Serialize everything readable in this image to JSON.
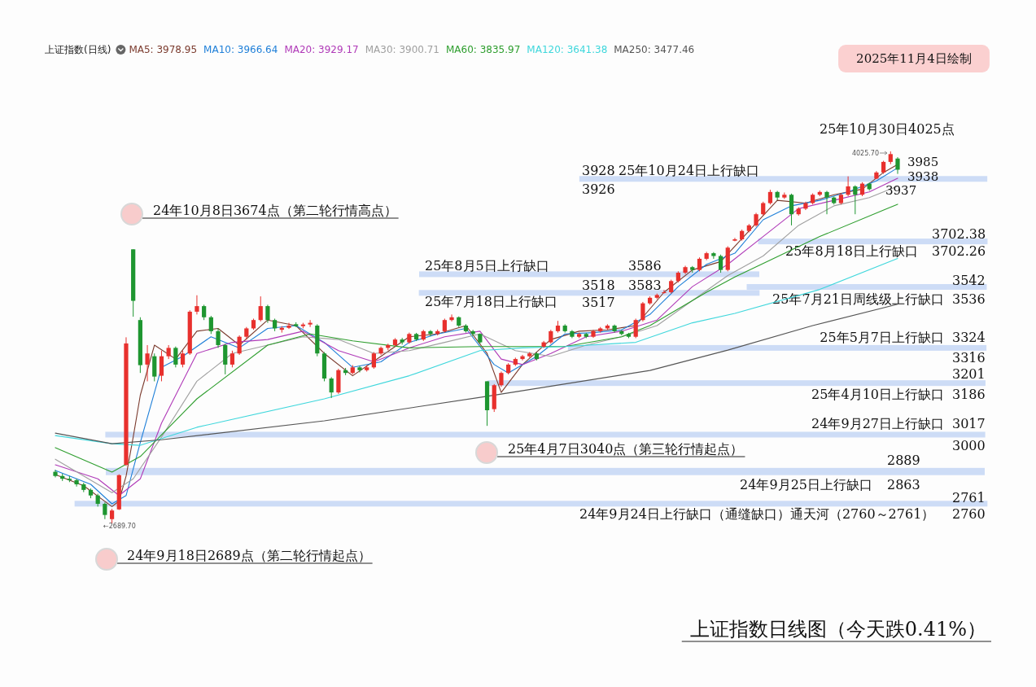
{
  "chart_data": {
    "type": "candlestick",
    "title": "上证指数日线图（今天跌0.41%）",
    "subtitle": "上证指数(日线)",
    "legend": "top",
    "categories": [
      null,
      null,
      null,
      null,
      null,
      null,
      null,
      null,
      null,
      null,
      null,
      null,
      null,
      null,
      null,
      null,
      null,
      null,
      null,
      null,
      null,
      null,
      null,
      null,
      null,
      null,
      null,
      null,
      null,
      null,
      null,
      null,
      null,
      null,
      null,
      null,
      null,
      null,
      null,
      null,
      null,
      null,
      null,
      null,
      null,
      null,
      null,
      null,
      null,
      null,
      null,
      null,
      null,
      null,
      null,
      null,
      null,
      null,
      null,
      null,
      null,
      null,
      null,
      null,
      null,
      null,
      null,
      null,
      null,
      null,
      null,
      null,
      null,
      null,
      null,
      null,
      null,
      null,
      null,
      null,
      null,
      null,
      null,
      null,
      null,
      null,
      null,
      null,
      null,
      null,
      null,
      null,
      null,
      null,
      null,
      null,
      null,
      null,
      null,
      null,
      null,
      null,
      null,
      null,
      null,
      null,
      null,
      null,
      null,
      null,
      null,
      null,
      null,
      null,
      null,
      null,
      null,
      null,
      null,
      null
    ],
    "ohlc": [
      [
        2875,
        2882,
        2855,
        2860
      ],
      [
        2860,
        2868,
        2842,
        2850
      ],
      [
        2850,
        2860,
        2838,
        2845
      ],
      [
        2845,
        2850,
        2822,
        2830
      ],
      [
        2830,
        2836,
        2802,
        2810
      ],
      [
        2810,
        2815,
        2780,
        2790
      ],
      [
        2790,
        2796,
        2750,
        2760
      ],
      [
        2760,
        2765,
        2705,
        2720
      ],
      [
        2705,
        2742,
        2689.7,
        2736
      ],
      [
        2740,
        2866,
        2738,
        2863
      ],
      [
        2900,
        3358,
        2896,
        3336
      ],
      [
        3674,
        3674,
        3432,
        3489
      ],
      [
        3420,
        3430,
        3230,
        3258
      ],
      [
        3260,
        3330,
        3200,
        3300
      ],
      [
        3290,
        3300,
        3200,
        3217
      ],
      [
        3220,
        3310,
        3200,
        3290
      ],
      [
        3290,
        3330,
        3280,
        3320
      ],
      [
        3320,
        3325,
        3250,
        3260
      ],
      [
        3260,
        3310,
        3250,
        3300
      ],
      [
        3300,
        3455,
        3295,
        3450
      ],
      [
        3450,
        3509,
        3440,
        3470
      ],
      [
        3470,
        3475,
        3420,
        3430
      ],
      [
        3430,
        3435,
        3370,
        3380
      ],
      [
        3380,
        3390,
        3320,
        3330
      ],
      [
        3330,
        3335,
        3225,
        3260
      ],
      [
        3260,
        3310,
        3250,
        3300
      ],
      [
        3300,
        3365,
        3295,
        3360
      ],
      [
        3360,
        3395,
        3350,
        3390
      ],
      [
        3390,
        3425,
        3385,
        3420
      ],
      [
        3420,
        3505,
        3415,
        3470
      ],
      [
        3470,
        3475,
        3410,
        3420
      ],
      [
        3420,
        3425,
        3380,
        3390
      ],
      [
        3385,
        3398,
        3375,
        3392
      ],
      [
        3392,
        3410,
        3388,
        3400
      ],
      [
        3405,
        3412,
        3395,
        3398
      ],
      [
        3398,
        3410,
        3390,
        3404
      ],
      [
        3404,
        3420,
        3395,
        3410
      ],
      [
        3400,
        3405,
        3290,
        3300
      ],
      [
        3300,
        3305,
        3200,
        3210
      ],
      [
        3210,
        3215,
        3140,
        3160
      ],
      [
        3160,
        3245,
        3155,
        3240
      ],
      [
        3240,
        3248,
        3222,
        3230
      ],
      [
        3230,
        3258,
        3225,
        3250
      ],
      [
        3250,
        3255,
        3232,
        3240
      ],
      [
        3240,
        3258,
        3235,
        3250
      ],
      [
        3250,
        3305,
        3245,
        3300
      ],
      [
        3300,
        3325,
        3295,
        3320
      ],
      [
        3320,
        3335,
        3312,
        3330
      ],
      [
        3330,
        3355,
        3325,
        3350
      ],
      [
        3350,
        3356,
        3332,
        3340
      ],
      [
        3340,
        3375,
        3335,
        3370
      ],
      [
        3370,
        3374,
        3345,
        3350
      ],
      [
        3350,
        3385,
        3345,
        3380
      ],
      [
        3380,
        3384,
        3362,
        3370
      ],
      [
        3370,
        3386,
        3365,
        3380
      ],
      [
        3380,
        3425,
        3375,
        3420
      ],
      [
        3420,
        3440,
        3415,
        3430
      ],
      [
        3430,
        3433,
        3395,
        3400
      ],
      [
        3400,
        3405,
        3375,
        3380
      ],
      [
        3380,
        3385,
        3362,
        3370
      ],
      [
        3370,
        3372,
        3335,
        3340
      ],
      [
        3200,
        3200,
        3040,
        3096
      ],
      [
        3100,
        3190,
        3090,
        3186
      ],
      [
        3186,
        3235,
        3180,
        3230
      ],
      [
        3230,
        3265,
        3225,
        3260
      ],
      [
        3260,
        3285,
        3255,
        3280
      ],
      [
        3280,
        3295,
        3275,
        3290
      ],
      [
        3290,
        3305,
        3285,
        3300
      ],
      [
        3300,
        3304,
        3275,
        3280
      ],
      [
        3324,
        3345,
        3320,
        3340
      ],
      [
        3340,
        3385,
        3335,
        3380
      ],
      [
        3380,
        3417,
        3375,
        3400
      ],
      [
        3400,
        3405,
        3375,
        3380
      ],
      [
        3380,
        3384,
        3355,
        3360
      ],
      [
        3360,
        3375,
        3355,
        3370
      ],
      [
        3370,
        3374,
        3355,
        3360
      ],
      [
        3360,
        3385,
        3356,
        3380
      ],
      [
        3380,
        3395,
        3375,
        3390
      ],
      [
        3390,
        3405,
        3385,
        3400
      ],
      [
        3400,
        3404,
        3375,
        3380
      ],
      [
        3380,
        3384,
        3365,
        3370
      ],
      [
        3370,
        3374,
        3355,
        3360
      ],
      [
        3360,
        3425,
        3355,
        3420
      ],
      [
        3420,
        3485,
        3415,
        3480
      ],
      [
        3480,
        3505,
        3475,
        3500
      ],
      [
        3500,
        3515,
        3495,
        3510
      ],
      [
        3518,
        3528,
        3515,
        3520
      ],
      [
        3520,
        3565,
        3515,
        3560
      ],
      [
        3560,
        3595,
        3555,
        3590
      ],
      [
        3590,
        3615,
        3585,
        3610
      ],
      [
        3610,
        3614,
        3590,
        3600
      ],
      [
        3600,
        3645,
        3595,
        3640
      ],
      [
        3640,
        3665,
        3635,
        3660
      ],
      [
        3660,
        3664,
        3640,
        3650
      ],
      [
        3650,
        3655,
        3590,
        3600
      ],
      [
        3600,
        3685,
        3595,
        3680
      ],
      [
        3705,
        3715,
        3703,
        3710
      ],
      [
        3710,
        3745,
        3705,
        3740
      ],
      [
        3740,
        3765,
        3735,
        3760
      ],
      [
        3760,
        3805,
        3755,
        3800
      ],
      [
        3800,
        3845,
        3795,
        3840
      ],
      [
        3840,
        3888,
        3835,
        3880
      ],
      [
        3880,
        3884,
        3850,
        3860
      ],
      [
        3860,
        3878,
        3855,
        3870
      ],
      [
        3870,
        3874,
        3760,
        3800
      ],
      [
        3800,
        3825,
        3795,
        3820
      ],
      [
        3820,
        3845,
        3815,
        3840
      ],
      [
        3840,
        3875,
        3835,
        3870
      ],
      [
        3870,
        3885,
        3865,
        3880
      ],
      [
        3880,
        3884,
        3800,
        3860
      ],
      [
        3860,
        3864,
        3835,
        3840
      ],
      [
        3840,
        3875,
        3835,
        3870
      ],
      [
        3870,
        3936,
        3865,
        3900
      ],
      [
        3900,
        3904,
        3800,
        3870
      ],
      [
        3870,
        3915,
        3865,
        3910
      ],
      [
        3910,
        3914,
        3885,
        3890
      ],
      [
        3928,
        3955,
        3926,
        3950
      ],
      [
        3950,
        3992,
        3945,
        3988
      ],
      [
        3988,
        4025.7,
        3980,
        4016
      ],
      [
        4000,
        4005,
        3945,
        3960
      ]
    ],
    "series": [
      {
        "name": "MA5: 3978.95",
        "type": "line",
        "color": "#7b3b2e",
        "values": [
          2865,
          null,
          null,
          null,
          2825,
          null,
          null,
          null,
          2750,
          2770,
          2860,
          3000,
          3150,
          null,
          3330,
          null,
          null,
          3280,
          null,
          null,
          3380,
          null,
          null,
          3390,
          null,
          null,
          3330,
          null,
          null,
          null,
          3420,
          null,
          null,
          null,
          3400,
          null,
          null,
          null,
          3300,
          null,
          null,
          null,
          3220,
          null,
          null,
          null,
          3290,
          null,
          null,
          null,
          3360,
          null,
          null,
          null,
          3370,
          null,
          null,
          null,
          3400,
          null,
          null,
          3300,
          null,
          3160,
          null,
          null,
          3260,
          null,
          null,
          null,
          3350,
          null,
          null,
          null,
          3380,
          null,
          null,
          null,
          3385,
          null,
          null,
          null,
          3400,
          null,
          null,
          null,
          3520,
          null,
          null,
          null,
          3600,
          null,
          null,
          null,
          3630,
          null,
          null,
          null,
          3740,
          null,
          null,
          null,
          3850,
          null,
          null,
          null,
          3840,
          null,
          null,
          null,
          3870,
          null,
          null,
          null,
          3890,
          null,
          null,
          3950,
          null,
          3979
        ]
      },
      {
        "name": "MA10: 3966.64",
        "type": "line",
        "color": "#1e7fd8",
        "values": [
          2880,
          null,
          null,
          null,
          null,
          2830,
          null,
          null,
          2760,
          null,
          2790,
          null,
          2980,
          null,
          null,
          3250,
          null,
          null,
          3290,
          null,
          null,
          null,
          3360,
          null,
          null,
          null,
          3320,
          null,
          null,
          null,
          3390,
          null,
          null,
          null,
          3400,
          null,
          null,
          null,
          3340,
          null,
          null,
          null,
          3250,
          null,
          null,
          null,
          3270,
          null,
          null,
          null,
          3340,
          null,
          null,
          null,
          3370,
          null,
          null,
          null,
          3390,
          null,
          null,
          null,
          3260,
          null,
          3230,
          null,
          null,
          null,
          3290,
          null,
          null,
          null,
          3370,
          null,
          null,
          null,
          3375,
          null,
          null,
          null,
          3385,
          null,
          null,
          null,
          3440,
          null,
          null,
          null,
          3540,
          null,
          null,
          null,
          3620,
          null,
          null,
          null,
          3660,
          null,
          null,
          null,
          3780,
          null,
          null,
          null,
          3830,
          null,
          null,
          null,
          3850,
          null,
          null,
          null,
          3880,
          null,
          null,
          null,
          3920,
          null,
          null,
          3967
        ]
      },
      {
        "name": "MA20: 3929.17",
        "type": "line",
        "color": "#b03ab8",
        "values": [
          2900,
          null,
          null,
          null,
          null,
          null,
          2850,
          null,
          null,
          2790,
          null,
          null,
          2850,
          null,
          null,
          3050,
          null,
          null,
          null,
          null,
          3300,
          null,
          null,
          null,
          null,
          3340,
          null,
          null,
          null,
          null,
          3350,
          null,
          null,
          null,
          null,
          3380,
          null,
          null,
          null,
          null,
          3310,
          null,
          null,
          null,
          null,
          3270,
          null,
          null,
          null,
          null,
          3320,
          null,
          null,
          null,
          null,
          3360,
          null,
          null,
          null,
          null,
          3380,
          null,
          null,
          3280,
          null,
          null,
          3260,
          null,
          null,
          null,
          3300,
          null,
          null,
          null,
          null,
          3360,
          null,
          null,
          null,
          null,
          3380,
          null,
          null,
          null,
          null,
          3420,
          null,
          null,
          null,
          null,
          3540,
          null,
          null,
          null,
          null,
          3620,
          null,
          null,
          null,
          null,
          3720,
          null,
          null,
          null,
          null,
          3820,
          null,
          null,
          null,
          null,
          3850,
          null,
          null,
          null,
          null,
          3880,
          null,
          null,
          null,
          3929
        ]
      },
      {
        "name": "MA30: 3900.71",
        "type": "line",
        "color": "#a0a0a0",
        "values": [
          2920,
          null,
          null,
          null,
          null,
          null,
          null,
          null,
          2800,
          null,
          null,
          2850,
          null,
          null,
          null,
          3000,
          null,
          null,
          null,
          null,
          3200,
          null,
          null,
          null,
          null,
          3300,
          null,
          null,
          null,
          null,
          3330,
          null,
          null,
          null,
          null,
          3360,
          null,
          null,
          null,
          null,
          3350,
          null,
          null,
          null,
          null,
          3300,
          null,
          null,
          null,
          null,
          3310,
          null,
          null,
          null,
          null,
          3340,
          null,
          null,
          null,
          null,
          3370,
          null,
          null,
          null,
          null,
          3310,
          null,
          null,
          null,
          null,
          3290,
          null,
          null,
          null,
          null,
          3330,
          null,
          null,
          null,
          null,
          3360,
          null,
          null,
          null,
          null,
          3400,
          null,
          null,
          null,
          null,
          3490,
          null,
          null,
          null,
          null,
          3580,
          null,
          null,
          null,
          null,
          3650,
          null,
          null,
          null,
          null,
          3760,
          null,
          null,
          null,
          null,
          3830,
          null,
          null,
          null,
          null,
          3860,
          null,
          null,
          null,
          3901
        ]
      },
      {
        "name": "MA60: 3835.97",
        "type": "line",
        "color": "#2e9e2e",
        "values": [
          2962,
          null,
          null,
          null,
          null,
          null,
          null,
          null,
          2874,
          null,
          null,
          null,
          2930,
          null,
          null,
          null,
          null,
          null,
          null,
          null,
          3137,
          null,
          null,
          null,
          null,
          null,
          null,
          null,
          null,
          null,
          3330,
          null,
          null,
          null,
          null,
          null,
          3370,
          null,
          null,
          null,
          null,
          null,
          3345,
          null,
          null,
          null,
          null,
          null,
          null,
          null,
          3320,
          null,
          null,
          null,
          null,
          null,
          null,
          null,
          null,
          null,
          3325,
          null,
          null,
          null,
          null,
          null,
          null,
          null,
          null,
          null,
          null,
          null,
          3325,
          null,
          null,
          null,
          null,
          null,
          null,
          null,
          3360,
          null,
          null,
          null,
          3400,
          null,
          null,
          null,
          null,
          null,
          null,
          null,
          3520,
          null,
          null,
          null,
          3575,
          null,
          null,
          null,
          null,
          null,
          null,
          null,
          null,
          null,
          null,
          null,
          3720,
          null,
          null,
          null,
          null,
          null,
          null,
          null,
          null,
          null,
          null,
          3836
        ]
      },
      {
        "name": "MA120: 3641.38",
        "type": "line",
        "color": "#3fd7dc",
        "values": [
          3005,
          null,
          null,
          null,
          null,
          null,
          null,
          null,
          2976,
          null,
          null,
          null,
          2970,
          null,
          null,
          null,
          null,
          null,
          null,
          null,
          3035,
          null,
          null,
          null,
          null,
          null,
          null,
          null,
          null,
          null,
          null,
          null,
          null,
          null,
          null,
          null,
          null,
          null,
          3137,
          null,
          null,
          null,
          null,
          null,
          null,
          null,
          null,
          null,
          null,
          null,
          3220,
          null,
          null,
          null,
          null,
          null,
          null,
          null,
          null,
          null,
          3310,
          null,
          null,
          null,
          null,
          null,
          3320,
          null,
          null,
          null,
          null,
          null,
          3325,
          null,
          null,
          null,
          null,
          null,
          null,
          null,
          null,
          null,
          3340,
          null,
          null,
          null,
          null,
          null,
          null,
          null,
          3410,
          null,
          null,
          null,
          null,
          null,
          3444,
          null,
          null,
          null,
          null,
          null,
          null,
          null,
          null,
          null,
          null,
          null,
          3530,
          null,
          null,
          null,
          null,
          null,
          null,
          null,
          null,
          null,
          null,
          3641
        ]
      },
      {
        "name": "MA250: 3477.46",
        "type": "line",
        "color": "#555555",
        "values": [
          3014,
          null,
          null,
          null,
          null,
          null,
          null,
          null,
          2976,
          null,
          null,
          null,
          null,
          null,
          null,
          2990,
          null,
          null,
          null,
          null,
          null,
          null,
          null,
          null,
          null,
          null,
          null,
          null,
          null,
          null,
          null,
          null,
          null,
          null,
          null,
          null,
          null,
          null,
          3058,
          null,
          null,
          null,
          null,
          null,
          null,
          null,
          null,
          null,
          null,
          null,
          null,
          null,
          null,
          null,
          null,
          null,
          null,
          null,
          null,
          null,
          null,
          3146,
          null,
          null,
          null,
          null,
          null,
          null,
          null,
          null,
          null,
          null,
          null,
          null,
          null,
          null,
          null,
          null,
          null,
          null,
          null,
          null,
          null,
          null,
          3239,
          null,
          null,
          null,
          null,
          null,
          null,
          null,
          null,
          null,
          null,
          3312,
          null,
          null,
          null,
          null,
          null,
          null,
          null,
          null,
          null,
          null,
          null,
          3400,
          null,
          null,
          null,
          null,
          null,
          null,
          null,
          null,
          null,
          null,
          null,
          3477
        ]
      }
    ],
    "bands": [
      {
        "axis": "y",
        "from": 2760,
        "to": 2761,
        "label": "24年9月24日上行缺口（通缝缺口）通天河（2760～2761）",
        "color": "#cddcf6"
      },
      {
        "axis": "y",
        "from": 2863,
        "to": 2889,
        "label": "24年9月25日上行缺口",
        "color": "#cddcf6"
      },
      {
        "axis": "y",
        "from": 3000,
        "to": 3017,
        "label": "24年9月27日上行缺口",
        "color": "#cddcf6"
      },
      {
        "axis": "y",
        "from": 3186,
        "to": 3201,
        "label": "25年4月10日上行缺口",
        "color": "#cddcf6"
      },
      {
        "axis": "y",
        "from": 3316,
        "to": 3324,
        "label": "25年5月7日上行缺口",
        "color": "#cddcf6"
      },
      {
        "axis": "y",
        "from": 3517,
        "to": 3518,
        "label": "25年7月18日上行缺口",
        "color": "#cddcf6"
      },
      {
        "axis": "y",
        "from": 3536,
        "to": 3542,
        "label": "25年7月21日周线级上行缺口",
        "color": "#cddcf6"
      },
      {
        "axis": "y",
        "from": 3583,
        "to": 3586,
        "label": "25年8月5日上行缺口",
        "color": "#cddcf6"
      },
      {
        "axis": "y",
        "from": 3702.26,
        "to": 3702.38,
        "label": "25年8月18日上行缺口",
        "color": "#cddcf6"
      },
      {
        "axis": "y",
        "from": 3926,
        "to": 3928,
        "label": "25年10月24日上行缺口",
        "color": "#cddcf6"
      }
    ],
    "annotations": [
      "24年10月8日3674点（第二轮行情高点）",
      "24年9月18日2689点（第二轮行情起点）",
      "25年4月7日3040点（第三轮行情起点）",
      "25年10月30日4025点",
      "4025.70",
      "←2689.70",
      "3985",
      "3938",
      "3937",
      "2025年11月4日绘制",
      "2761",
      "2760",
      "2889",
      "2863",
      "3017",
      "3000",
      "3201",
      "3186",
      "3324",
      "3316",
      "3518",
      "3517",
      "3542",
      "3536",
      "3586",
      "3583",
      "3702.38",
      "3702.26",
      "3928",
      "3926"
    ]
  }
}
